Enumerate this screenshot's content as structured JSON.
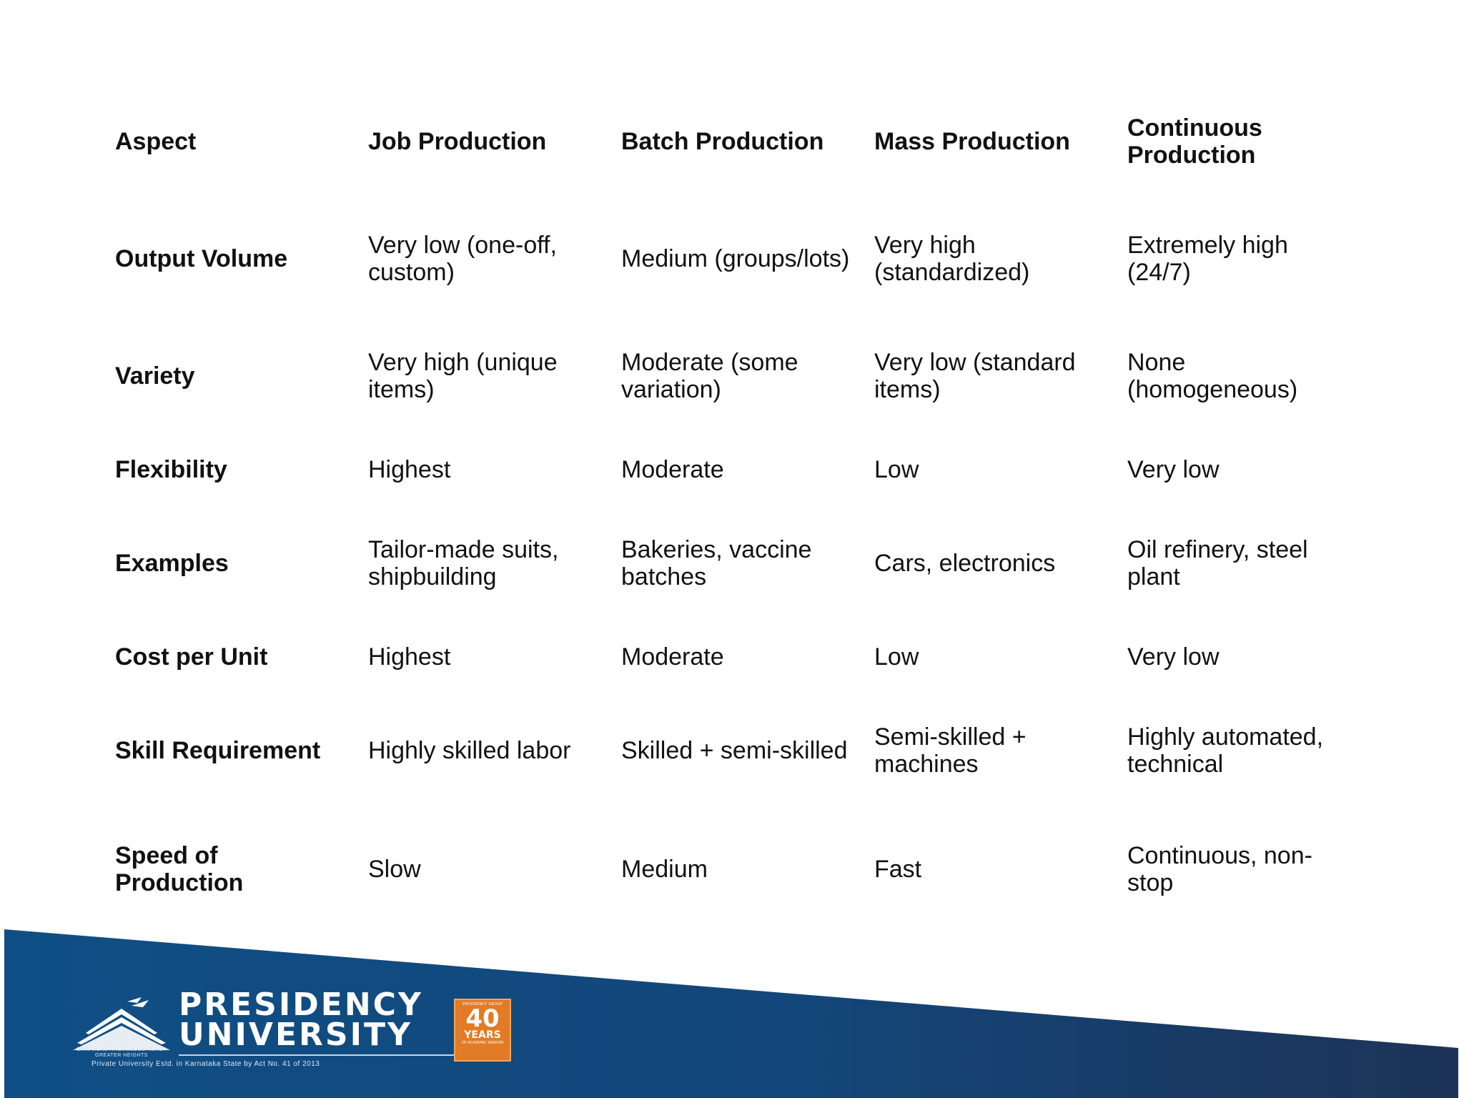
{
  "table": {
    "headers": [
      "Aspect",
      "Job Production",
      "Batch Production",
      "Mass Production",
      "Continuous Production"
    ],
    "rows": [
      [
        "Output Volume",
        "Very low (one-off, custom)",
        "Medium (groups/lots)",
        "Very high (standardized)",
        "Extremely high (24/7)"
      ],
      [
        "Variety",
        "Very high (unique items)",
        "Moderate (some variation)",
        "Very low (standard items)",
        "None (homogeneous)"
      ],
      [
        "Flexibility",
        "Highest",
        "Moderate",
        "Low",
        "Very low"
      ],
      [
        "Examples",
        "Tailor-made suits, shipbuilding",
        "Bakeries, vaccine batches",
        "Cars, electronics",
        "Oil refinery, steel plant"
      ],
      [
        "Cost per Unit",
        "Highest",
        "Moderate",
        "Low",
        "Very low"
      ],
      [
        "Skill Requirement",
        "Highly skilled labor",
        "Skilled + semi-skilled",
        "Semi-skilled + machines",
        "Highly automated, technical"
      ],
      [
        "Speed of Production",
        "Slow",
        "Medium",
        "Fast",
        "Continuous, non-stop"
      ]
    ]
  },
  "footer": {
    "university_line1": "PRESIDENCY",
    "university_line2": "UNIVERSITY",
    "tagline": "GAIN MORE KNOWLEDGE REACH GREATER HEIGHTS",
    "estd": "Private University Estd. in Karnataka State by Act No. 41 of 2013",
    "badge_top": "PRESIDENCY GROUP",
    "badge_number": "40",
    "badge_mid": "YEARS",
    "badge_bottom": "OF ACADEMIC WISDOM",
    "band_color": "#0f4f85",
    "badge_color": "#e27b25"
  }
}
